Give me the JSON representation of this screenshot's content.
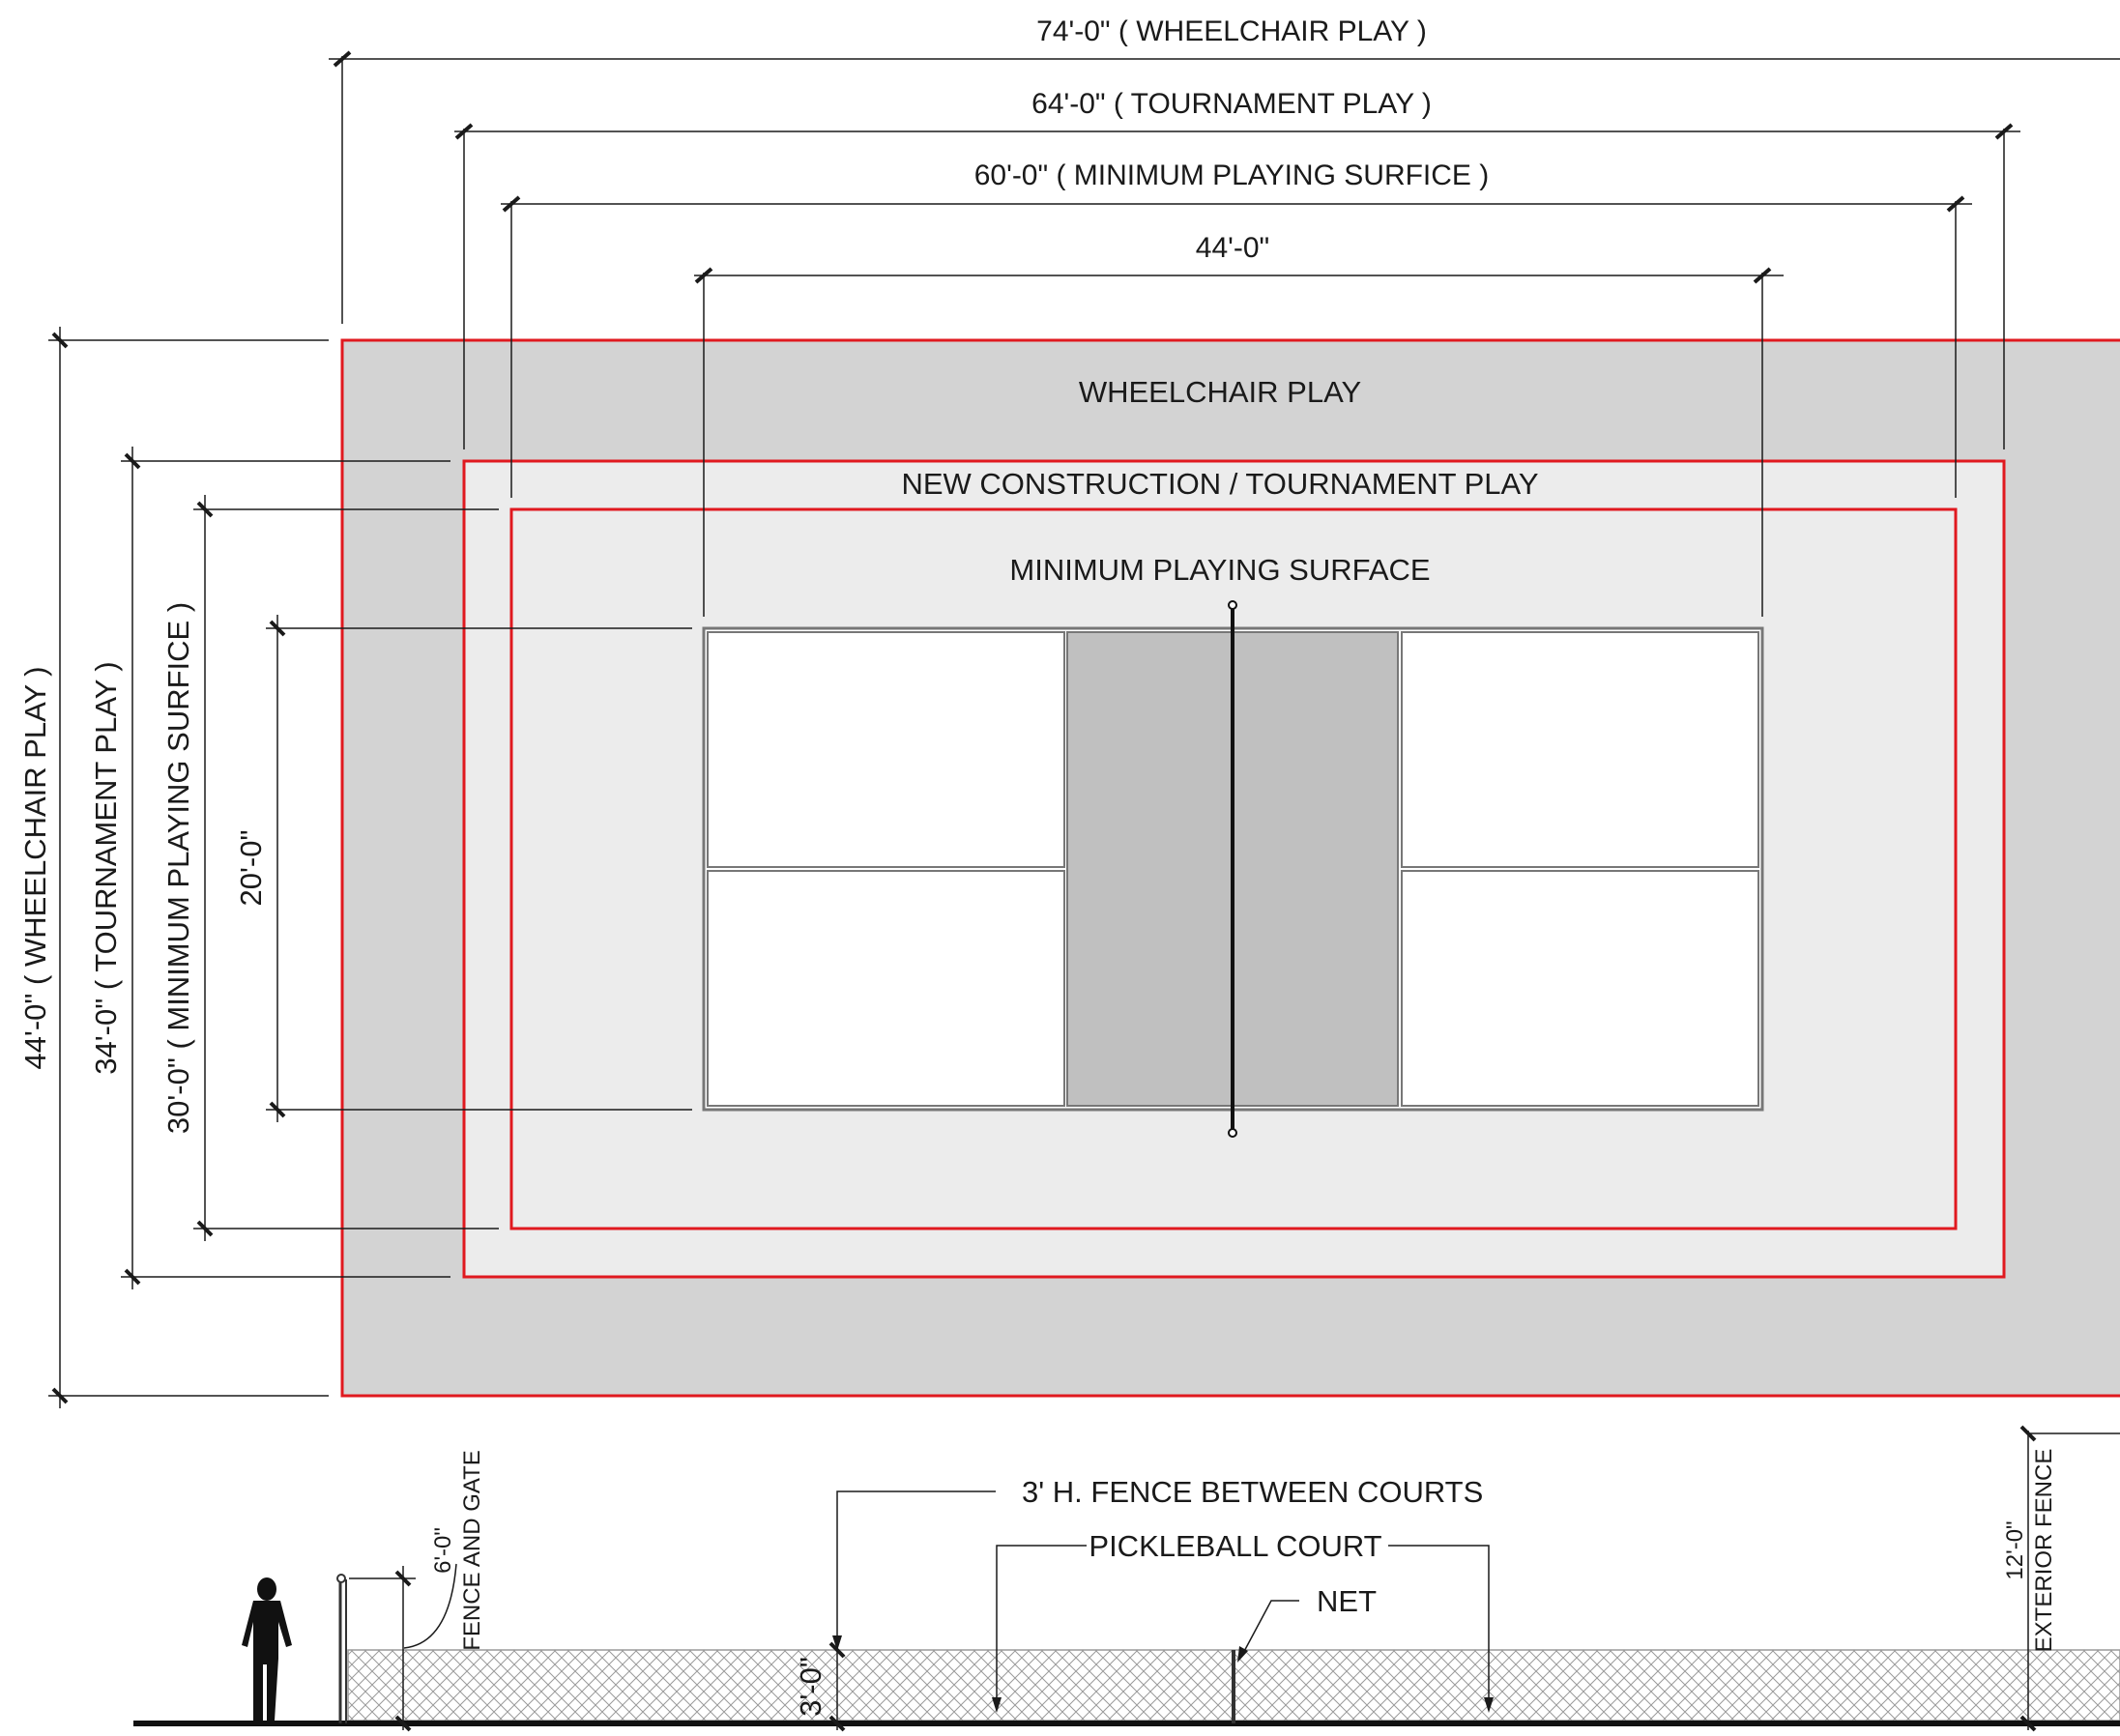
{
  "colors": {
    "boundary_red": "#e0191f",
    "wheelchair_fill": "#d3d3d3",
    "tournament_fill": "#ececec",
    "kitchen_fill": "#c0c0c0",
    "service_box_fill": "#ffffff",
    "line": "#1a1a1a"
  },
  "dimensions": {
    "horizontal": {
      "wheelchair": "74'-0\" ( WHEELCHAIR PLAY )",
      "tournament": "64'-0\" ( TOURNAMENT PLAY )",
      "minimum": "60'-0\" ( MINIMUM PLAYING SURFICE )",
      "court": "44'-0\""
    },
    "vertical": {
      "wheelchair": "44'-0\" ( WHEELCHAIR PLAY )",
      "tournament": "34'-0\" ( TOURNAMENT PLAY )",
      "minimum": "30'-0\" ( MINIMUM PLAYING SURFICE )",
      "court": "20'-0\""
    }
  },
  "zones": {
    "wheelchair": "WHEELCHAIR PLAY",
    "tournament": "NEW CONSTRUCTION / TOURNAMENT PLAY",
    "minimum": "MINIMUM PLAYING SURFACE"
  },
  "elevation": {
    "fence_gate": "FENCE AND GATE",
    "fence_gate_height": "6'-0\"",
    "fence_between": "3' H. FENCE BETWEEN COURTS",
    "fence_between_height": "3'-0\"",
    "court": "PICKLEBALL COURT",
    "net": "NET",
    "exterior_fence": "EXTERIOR FENCE",
    "exterior_fence_height": "12'-0\""
  }
}
